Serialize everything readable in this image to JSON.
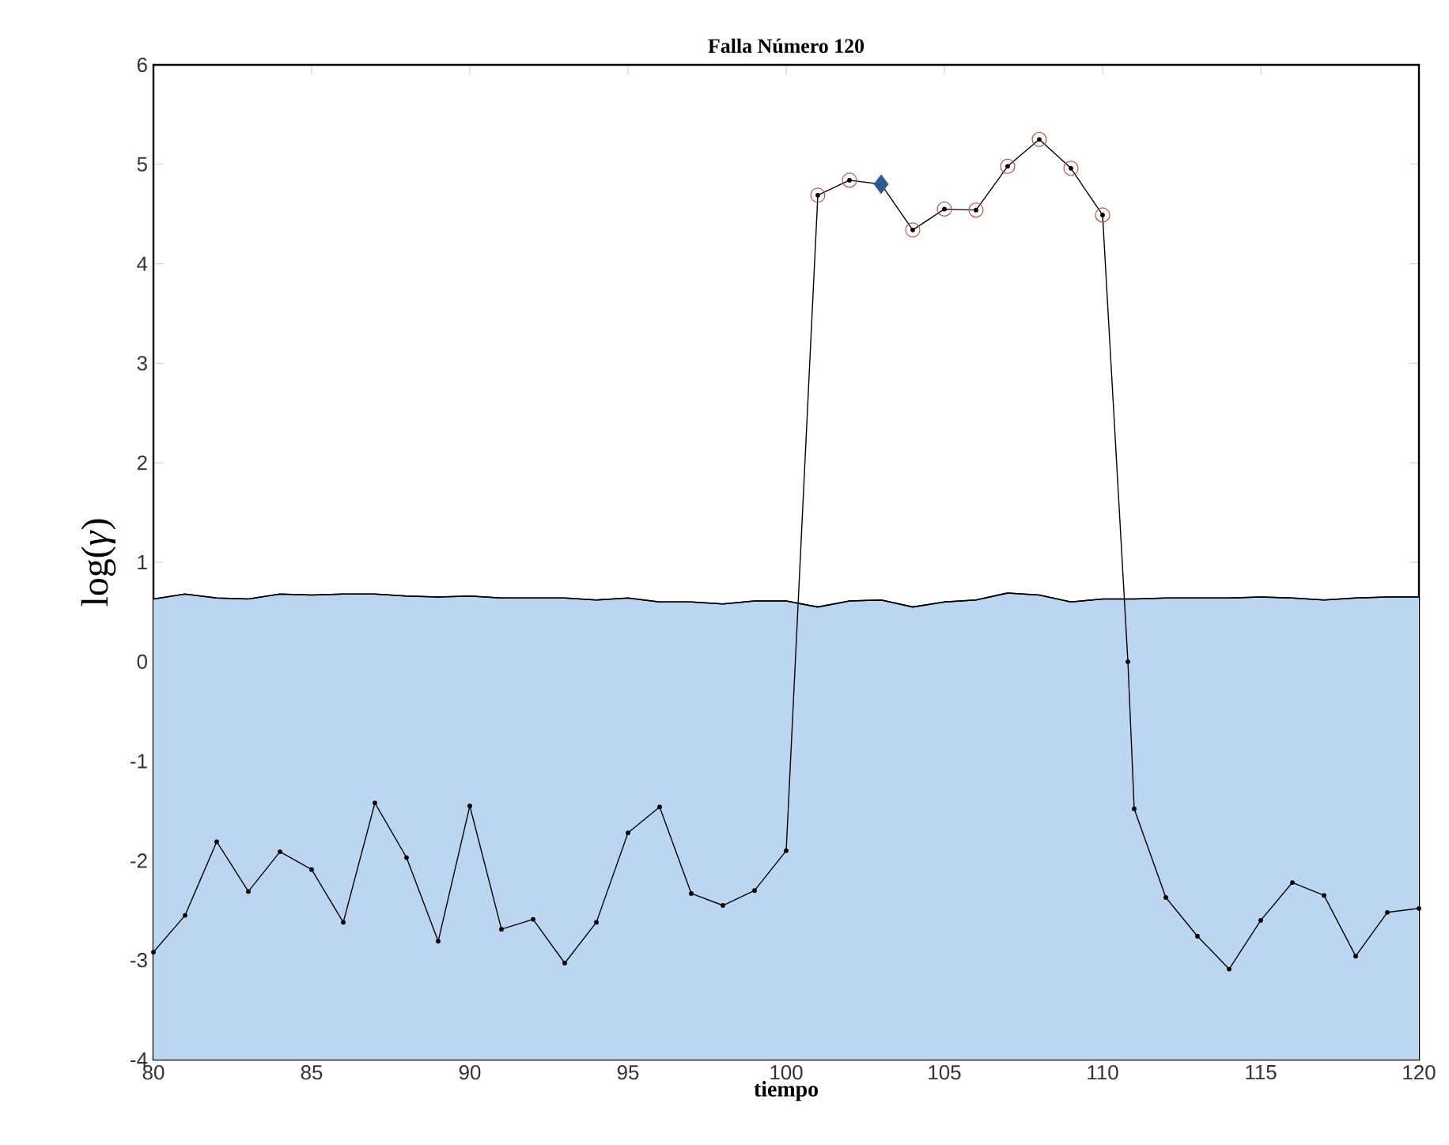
{
  "chart_data": {
    "type": "line",
    "title": "Falla Número 120",
    "xlabel": "tiempo",
    "ylabel": "log(*γ*)",
    "xlim": [
      80,
      120
    ],
    "ylim": [
      -4,
      6
    ],
    "xticks": [
      80,
      85,
      90,
      95,
      100,
      105,
      110,
      115,
      120
    ],
    "yticks": [
      -4,
      -3,
      -2,
      -1,
      0,
      1,
      2,
      3,
      4,
      5,
      6
    ],
    "grid": false,
    "series": [
      {
        "type": "area",
        "color": "#bcd5f0",
        "marker": "none",
        "x": [
          80,
          81,
          82,
          83,
          84,
          85,
          86,
          87,
          88,
          89,
          90,
          91,
          92,
          93,
          94,
          95,
          96,
          97,
          98,
          99,
          100,
          101,
          102,
          103,
          104,
          105,
          106,
          107,
          108,
          109,
          110,
          111,
          112,
          113,
          114,
          115,
          116,
          117,
          118,
          119,
          120
        ],
        "values": [
          0.63,
          0.68,
          0.64,
          0.63,
          0.68,
          0.67,
          0.68,
          0.68,
          0.66,
          0.65,
          0.66,
          0.64,
          0.64,
          0.64,
          0.62,
          0.64,
          0.6,
          0.6,
          0.58,
          0.61,
          0.61,
          0.55,
          0.61,
          0.62,
          0.55,
          0.6,
          0.62,
          0.69,
          0.67,
          0.6,
          0.63,
          0.63,
          0.64,
          0.64,
          0.64,
          0.65,
          0.64,
          0.62,
          0.64,
          0.65,
          0.65
        ]
      },
      {
        "color": "#000000",
        "marker": "circle",
        "x": [
          80,
          81,
          82,
          83,
          84,
          85,
          86,
          87,
          88,
          89,
          90,
          91,
          92,
          93,
          94,
          95,
          96,
          97,
          98,
          99,
          100,
          101,
          102,
          103,
          104,
          105,
          106,
          107,
          108,
          109,
          110,
          110.8,
          111,
          112,
          113,
          114,
          115,
          116,
          117,
          118,
          119,
          120
        ],
        "values": [
          -2.92,
          -2.55,
          -1.81,
          -2.31,
          -1.91,
          -2.09,
          -2.62,
          -1.42,
          -1.97,
          -2.81,
          -1.45,
          -2.69,
          -2.59,
          -3.03,
          -2.62,
          -1.72,
          -1.46,
          -2.33,
          -2.45,
          -2.3,
          -1.9,
          4.69,
          4.84,
          4.8,
          4.34,
          4.55,
          4.54,
          4.98,
          5.25,
          4.96,
          4.49,
          0.0,
          -1.48,
          -2.37,
          -2.76,
          -3.09,
          -2.6,
          -2.22,
          -2.35,
          -2.96,
          -2.52,
          -2.48
        ]
      },
      {
        "type": "scatter",
        "color": "#c0504d",
        "marker": "circle",
        "x": [
          101,
          102,
          104,
          105,
          106,
          107,
          108,
          109,
          110
        ],
        "values": [
          4.69,
          4.84,
          4.34,
          4.55,
          4.54,
          4.98,
          5.25,
          4.96,
          4.49
        ]
      },
      {
        "type": "scatter",
        "color": "#2e5a8c",
        "marker": "diamond",
        "x": [
          103
        ],
        "values": [
          4.8
        ]
      }
    ]
  }
}
